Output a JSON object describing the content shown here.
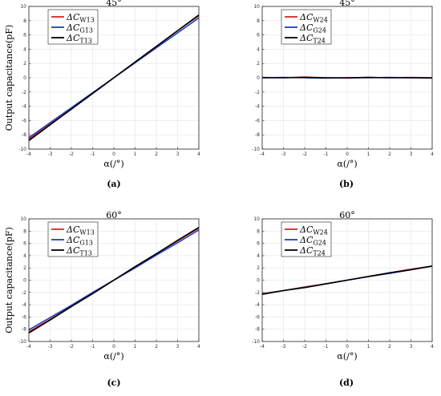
{
  "chart_data": [
    {
      "type": "line",
      "title": "45°",
      "caption": "(a)",
      "xlabel": "α(/°)",
      "ylabel": "Output capacitance(pF)",
      "xlim": [
        -4,
        4
      ],
      "ylim": [
        -10,
        10
      ],
      "xticks": [
        -4,
        -3,
        -2,
        -1,
        0,
        1,
        2,
        3,
        4
      ],
      "yticks": [
        -10,
        -8,
        -6,
        -4,
        -2,
        0,
        2,
        4,
        6,
        8,
        10
      ],
      "grid": true,
      "legend": "top-left",
      "series": [
        {
          "name": "ΔC_W13",
          "label_main": "ΔC",
          "label_sub": "W13",
          "color": "#d62728",
          "x": [
            -4,
            -3,
            -2,
            -1,
            0,
            1,
            2,
            3,
            4
          ],
          "values": [
            -8.6,
            -6.5,
            -4.4,
            -2.2,
            0.0,
            2.2,
            4.4,
            6.6,
            8.7
          ]
        },
        {
          "name": "ΔC_G13",
          "label_main": "ΔC",
          "label_sub": "G13",
          "color": "#1f3fbf",
          "x": [
            -4,
            -3,
            -2,
            -1,
            0,
            1,
            2,
            3,
            4
          ],
          "values": [
            -8.4,
            -6.3,
            -4.2,
            -2.1,
            0.0,
            2.1,
            4.2,
            6.3,
            8.4
          ]
        },
        {
          "name": "ΔC_T13",
          "label_main": "ΔC",
          "label_sub": "T13",
          "color": "#000000",
          "x": [
            -4,
            -3,
            -2,
            -1,
            0,
            1,
            2,
            3,
            4
          ],
          "values": [
            -8.8,
            -6.6,
            -4.4,
            -2.2,
            0.0,
            2.2,
            4.4,
            6.6,
            8.8
          ]
        }
      ]
    },
    {
      "type": "line",
      "title": "45°",
      "caption": "(b)",
      "xlabel": "α(/°)",
      "ylabel": "",
      "xlim": [
        -4,
        4
      ],
      "ylim": [
        -10,
        10
      ],
      "xticks": [
        -4,
        -3,
        -2,
        -1,
        0,
        1,
        2,
        3,
        4
      ],
      "yticks": [
        -10,
        -8,
        -6,
        -4,
        -2,
        0,
        2,
        4,
        6,
        8,
        10
      ],
      "grid": true,
      "legend": "top-left",
      "series": [
        {
          "name": "ΔC_W24",
          "label_main": "ΔC",
          "label_sub": "W24",
          "color": "#d62728",
          "x": [
            -4,
            -3,
            -2,
            -1,
            0,
            1,
            2,
            3,
            4
          ],
          "values": [
            0.05,
            0.0,
            0.1,
            0.0,
            -0.05,
            0.05,
            0.0,
            0.05,
            0.0
          ]
        },
        {
          "name": "ΔC_G24",
          "label_main": "ΔC",
          "label_sub": "G24",
          "color": "#1f3fbf",
          "x": [
            -4,
            -3,
            -2,
            -1,
            0,
            1,
            2,
            3,
            4
          ],
          "values": [
            0.0,
            0.05,
            0.0,
            -0.05,
            0.0,
            0.0,
            0.05,
            0.0,
            -0.05
          ]
        },
        {
          "name": "ΔC_T24",
          "label_main": "ΔC",
          "label_sub": "T24",
          "color": "#000000",
          "x": [
            -4,
            -3,
            -2,
            -1,
            0,
            1,
            2,
            3,
            4
          ],
          "values": [
            0.0,
            0.0,
            0.05,
            0.0,
            0.0,
            0.05,
            0.0,
            0.0,
            0.0
          ]
        }
      ]
    },
    {
      "type": "line",
      "title": "60°",
      "caption": "(c)",
      "xlabel": "α(/°)",
      "ylabel": "Output capacitance(pF)",
      "xlim": [
        -4,
        4
      ],
      "ylim": [
        -10,
        10
      ],
      "xticks": [
        -4,
        -3,
        -2,
        -1,
        0,
        1,
        2,
        3,
        4
      ],
      "yticks": [
        -10,
        -8,
        -6,
        -4,
        -2,
        0,
        2,
        4,
        6,
        8,
        10
      ],
      "grid": true,
      "legend": "top-left",
      "series": [
        {
          "name": "ΔC_W13",
          "label_main": "ΔC",
          "label_sub": "W13",
          "color": "#d62728",
          "x": [
            -4,
            -3,
            -2,
            -1,
            0,
            1,
            2,
            3,
            4
          ],
          "values": [
            -8.4,
            -6.4,
            -4.3,
            -2.2,
            0.0,
            2.2,
            4.3,
            6.4,
            8.5
          ]
        },
        {
          "name": "ΔC_G13",
          "label_main": "ΔC",
          "label_sub": "G13",
          "color": "#1f3fbf",
          "x": [
            -4,
            -3,
            -2,
            -1,
            0,
            1,
            2,
            3,
            4
          ],
          "values": [
            -8.1,
            -6.1,
            -4.1,
            -2.0,
            0.0,
            2.0,
            4.1,
            6.1,
            8.2
          ]
        },
        {
          "name": "ΔC_T13",
          "label_main": "ΔC",
          "label_sub": "T13",
          "color": "#000000",
          "x": [
            -4,
            -3,
            -2,
            -1,
            0,
            1,
            2,
            3,
            4
          ],
          "values": [
            -8.6,
            -6.5,
            -4.3,
            -2.2,
            0.0,
            2.2,
            4.3,
            6.5,
            8.6
          ]
        }
      ]
    },
    {
      "type": "line",
      "title": "60°",
      "caption": "(d)",
      "xlabel": "α(/°)",
      "ylabel": "",
      "xlim": [
        -4,
        4
      ],
      "ylim": [
        -10,
        10
      ],
      "xticks": [
        -4,
        -3,
        -2,
        -1,
        0,
        1,
        2,
        3,
        4
      ],
      "yticks": [
        -10,
        -8,
        -6,
        -4,
        -2,
        0,
        2,
        4,
        6,
        8,
        10
      ],
      "grid": true,
      "legend": "top-left",
      "series": [
        {
          "name": "ΔC_W24",
          "label_main": "ΔC",
          "label_sub": "W24",
          "color": "#d62728",
          "x": [
            -4,
            -3,
            -2,
            -1,
            0,
            1,
            2,
            3,
            4
          ],
          "values": [
            -2.2,
            -1.7,
            -1.1,
            -0.6,
            0.0,
            0.6,
            1.2,
            1.8,
            2.3
          ]
        },
        {
          "name": "ΔC_G24",
          "label_main": "ΔC",
          "label_sub": "G24",
          "color": "#1f3fbf",
          "x": [
            -4,
            -3,
            -2,
            -1,
            0,
            1,
            2,
            3,
            4
          ],
          "values": [
            -2.3,
            -1.7,
            -1.2,
            -0.6,
            0.0,
            0.6,
            1.1,
            1.7,
            2.3
          ]
        },
        {
          "name": "ΔC_T24",
          "label_main": "ΔC",
          "label_sub": "T24",
          "color": "#000000",
          "x": [
            -4,
            -3,
            -2,
            -1,
            0,
            1,
            2,
            3,
            4
          ],
          "values": [
            -2.3,
            -1.7,
            -1.2,
            -0.6,
            0.0,
            0.6,
            1.2,
            1.7,
            2.3
          ]
        }
      ]
    }
  ]
}
